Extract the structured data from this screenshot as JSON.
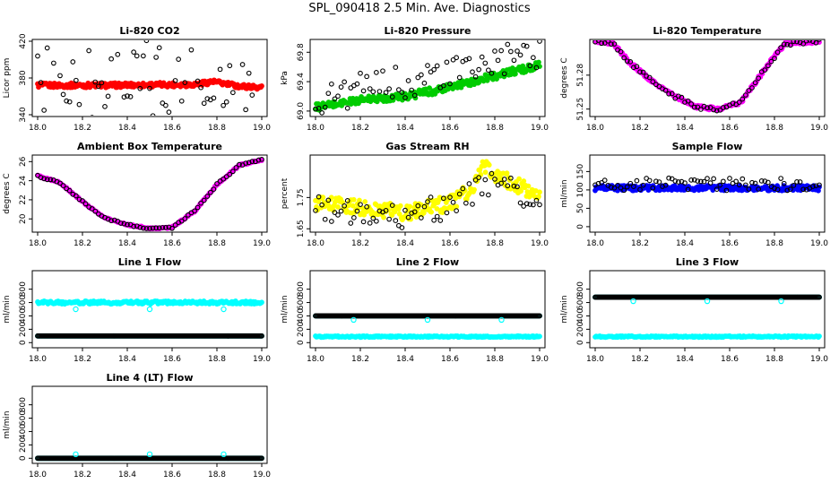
{
  "page_title": "SPL_090418  2.5 Min. Ave. Diagnostics",
  "colors": {
    "black": "#000000",
    "red": "#ff0000",
    "green": "#00cc00",
    "magenta": "#ff00ff",
    "yellow": "#ffff00",
    "blue": "#0000ff",
    "cyan": "#00ffff"
  },
  "chart_data": [
    {
      "type": "scatter",
      "title": "Li-820 CO2",
      "ylabel": "Licor ppm",
      "xlim": [
        18.0,
        19.0
      ],
      "ylim": [
        340,
        420
      ],
      "xticks": [
        "18.0",
        "18.2",
        "18.4",
        "18.6",
        "18.8",
        "19.0"
      ],
      "yticks": [
        "340",
        "380",
        "420"
      ],
      "series": [
        {
          "kind": "band",
          "color": "#ff0000",
          "profile": [
            [
              18.0,
              372
            ],
            [
              18.3,
              372
            ],
            [
              18.7,
              373
            ],
            [
              18.78,
              376
            ],
            [
              18.9,
              371
            ],
            [
              19.0,
              370
            ]
          ],
          "spread": 2.5,
          "filled": true
        },
        {
          "kind": "scatter",
          "color": "#000000",
          "profile": [
            [
              18.0,
              372
            ],
            [
              19.0,
              372
            ]
          ],
          "spread": 50,
          "filled": false
        }
      ]
    },
    {
      "type": "scatter",
      "title": "Li-820 Pressure",
      "ylabel": "kPa",
      "xlim": [
        18.0,
        19.0
      ],
      "ylim": [
        68.95,
        69.95
      ],
      "xticks": [
        "18.0",
        "18.2",
        "18.4",
        "18.6",
        "18.8",
        "19.0"
      ],
      "yticks": [
        "69.0",
        "69.4",
        "69.8"
      ],
      "series": [
        {
          "kind": "band",
          "color": "#00cc00",
          "profile": [
            [
              18.0,
              69.05
            ],
            [
              18.2,
              69.15
            ],
            [
              18.4,
              69.2
            ],
            [
              18.6,
              69.32
            ],
            [
              18.8,
              69.48
            ],
            [
              19.0,
              69.62
            ]
          ],
          "spread": 0.05,
          "filled": true
        },
        {
          "kind": "scatter",
          "color": "#000000",
          "profile": [
            [
              18.0,
              69.15
            ],
            [
              18.2,
              69.3
            ],
            [
              18.4,
              69.4
            ],
            [
              18.6,
              69.5
            ],
            [
              18.8,
              69.65
            ],
            [
              19.0,
              69.8
            ]
          ],
          "spread": 0.22,
          "filled": false
        }
      ]
    },
    {
      "type": "scatter",
      "title": "Li-820 Temperature",
      "ylabel": "degrees C",
      "xlim": [
        18.0,
        19.0
      ],
      "ylim": [
        51.245,
        51.31
      ],
      "xticks": [
        "18.0",
        "18.2",
        "18.4",
        "18.6",
        "18.8",
        "19.0"
      ],
      "yticks": [
        "51.25",
        "51.28"
      ],
      "series": [
        {
          "kind": "band",
          "color": "#ff00ff",
          "profile": [
            [
              18.0,
              51.31
            ],
            [
              18.08,
              51.308
            ],
            [
              18.15,
              51.292
            ],
            [
              18.25,
              51.275
            ],
            [
              18.35,
              51.262
            ],
            [
              18.45,
              51.252
            ],
            [
              18.55,
              51.25
            ],
            [
              18.65,
              51.256
            ],
            [
              18.72,
              51.275
            ],
            [
              18.78,
              51.292
            ],
            [
              18.85,
              51.308
            ],
            [
              19.0,
              51.31
            ]
          ],
          "spread": 0.0015,
          "filled": true
        },
        {
          "kind": "scatter",
          "color": "#000000",
          "profile": [
            [
              18.0,
              51.31
            ],
            [
              18.08,
              51.308
            ],
            [
              18.15,
              51.292
            ],
            [
              18.25,
              51.275
            ],
            [
              18.35,
              51.262
            ],
            [
              18.45,
              51.252
            ],
            [
              18.55,
              51.25
            ],
            [
              18.65,
              51.256
            ],
            [
              18.72,
              51.275
            ],
            [
              18.78,
              51.292
            ],
            [
              18.85,
              51.308
            ],
            [
              19.0,
              51.31
            ]
          ],
          "spread": 0.002,
          "filled": false
        }
      ]
    },
    {
      "type": "scatter",
      "title": "Ambient Box Temperature",
      "ylabel": "degrees C",
      "xlim": [
        18.0,
        19.0
      ],
      "ylim": [
        18.8,
        26.5
      ],
      "xticks": [
        "18.0",
        "18.2",
        "18.4",
        "18.6",
        "18.8",
        "19.0"
      ],
      "yticks": [
        "20",
        "22",
        "24",
        "26"
      ],
      "series": [
        {
          "kind": "band",
          "color": "#ff00ff",
          "profile": [
            [
              18.0,
              24.5
            ],
            [
              18.1,
              23.8
            ],
            [
              18.2,
              21.8
            ],
            [
              18.3,
              20.1
            ],
            [
              18.4,
              19.4
            ],
            [
              18.5,
              19.0
            ],
            [
              18.6,
              19.1
            ],
            [
              18.7,
              20.8
            ],
            [
              18.8,
              23.6
            ],
            [
              18.9,
              25.6
            ],
            [
              19.0,
              26.2
            ]
          ],
          "spread": 0.08,
          "filled": true
        },
        {
          "kind": "scatter",
          "color": "#000000",
          "profile": [
            [
              18.0,
              24.5
            ],
            [
              18.1,
              23.8
            ],
            [
              18.2,
              21.8
            ],
            [
              18.3,
              20.1
            ],
            [
              18.4,
              19.4
            ],
            [
              18.5,
              19.0
            ],
            [
              18.6,
              19.1
            ],
            [
              18.7,
              20.8
            ],
            [
              18.8,
              23.6
            ],
            [
              18.9,
              25.6
            ],
            [
              19.0,
              26.2
            ]
          ],
          "spread": 0.1,
          "filled": false
        }
      ]
    },
    {
      "type": "scatter",
      "title": "Gas Stream RH",
      "ylabel": "percent",
      "xlim": [
        18.0,
        19.0
      ],
      "ylim": [
        1.645,
        1.88
      ],
      "xticks": [
        "18.0",
        "18.2",
        "18.4",
        "18.6",
        "18.8",
        "19.0"
      ],
      "yticks": [
        "1.65",
        "1.75"
      ],
      "series": [
        {
          "kind": "band",
          "color": "#ffff00",
          "profile": [
            [
              18.0,
              1.73
            ],
            [
              18.2,
              1.72
            ],
            [
              18.3,
              1.71
            ],
            [
              18.4,
              1.7
            ],
            [
              18.5,
              1.72
            ],
            [
              18.6,
              1.73
            ],
            [
              18.7,
              1.78
            ],
            [
              18.75,
              1.85
            ],
            [
              18.8,
              1.82
            ],
            [
              18.9,
              1.79
            ],
            [
              19.0,
              1.76
            ]
          ],
          "spread": 0.025,
          "filled": true
        },
        {
          "kind": "scatter",
          "color": "#000000",
          "profile": [
            [
              18.0,
              1.72
            ],
            [
              18.2,
              1.7
            ],
            [
              18.3,
              1.7
            ],
            [
              18.4,
              1.68
            ],
            [
              18.5,
              1.71
            ],
            [
              18.6,
              1.72
            ],
            [
              18.7,
              1.76
            ],
            [
              18.75,
              1.8
            ],
            [
              18.8,
              1.79
            ],
            [
              18.9,
              1.77
            ],
            [
              19.0,
              1.73
            ]
          ],
          "spread": 0.04,
          "filled": false
        }
      ]
    },
    {
      "type": "scatter",
      "title": "Sample Flow",
      "ylabel": "ml/min",
      "xlim": [
        18.0,
        19.0
      ],
      "ylim": [
        -10,
        190
      ],
      "xticks": [
        "18.0",
        "18.2",
        "18.4",
        "18.6",
        "18.8",
        "19.0"
      ],
      "yticks": [
        "0",
        "50",
        "100",
        "150"
      ],
      "series": [
        {
          "kind": "band",
          "color": "#0000ff",
          "profile": [
            [
              18.0,
              105
            ],
            [
              19.0,
              105
            ]
          ],
          "spread": 7,
          "filled": true
        },
        {
          "kind": "scatter",
          "color": "#000000",
          "profile": [
            [
              18.0,
              115
            ],
            [
              19.0,
              115
            ]
          ],
          "spread": 18,
          "filled": false
        }
      ]
    },
    {
      "type": "scatter",
      "title": "Line 1 Flow",
      "ylabel": "ml/min",
      "xlim": [
        18.0,
        19.0
      ],
      "ylim": [
        -50,
        1050
      ],
      "xticks": [
        "18.0",
        "18.2",
        "18.4",
        "18.6",
        "18.8",
        "19.0"
      ],
      "yticks": [
        "0",
        "200",
        "400",
        "600",
        "800"
      ],
      "series": [
        {
          "kind": "band",
          "color": "#00ffff",
          "profile": [
            [
              18.0,
              600
            ],
            [
              19.0,
              600
            ]
          ],
          "spread": 22,
          "filled": true
        },
        {
          "kind": "line",
          "color": "#00ffff",
          "profile": [
            [
              18.0,
              100
            ],
            [
              19.0,
              100
            ]
          ],
          "spread": 0
        },
        {
          "kind": "line",
          "color": "#000000",
          "profile": [
            [
              18.0,
              100
            ],
            [
              19.0,
              100
            ]
          ],
          "spread": 0
        },
        {
          "kind": "points",
          "color": "#00ffff",
          "x": [
            18.17,
            18.5,
            18.83
          ],
          "y": [
            500,
            500,
            500
          ]
        }
      ]
    },
    {
      "type": "scatter",
      "title": "Line 2 Flow",
      "ylabel": "ml/min",
      "xlim": [
        18.0,
        19.0
      ],
      "ylim": [
        -50,
        1050
      ],
      "xticks": [
        "18.0",
        "18.2",
        "18.4",
        "18.6",
        "18.8",
        "19.0"
      ],
      "yticks": [
        "0",
        "200",
        "400",
        "600",
        "800"
      ],
      "series": [
        {
          "kind": "band",
          "color": "#00ffff",
          "profile": [
            [
              18.0,
              90
            ],
            [
              19.0,
              90
            ]
          ],
          "spread": 10,
          "filled": true
        },
        {
          "kind": "line",
          "color": "#00ffff",
          "profile": [
            [
              18.0,
              400
            ],
            [
              19.0,
              400
            ]
          ],
          "spread": 0
        },
        {
          "kind": "line",
          "color": "#000000",
          "profile": [
            [
              18.0,
              400
            ],
            [
              19.0,
              400
            ]
          ],
          "spread": 0
        },
        {
          "kind": "points",
          "color": "#00ffff",
          "x": [
            18.17,
            18.5,
            18.83
          ],
          "y": [
            340,
            340,
            340
          ]
        }
      ]
    },
    {
      "type": "scatter",
      "title": "Line 3 Flow",
      "ylabel": "ml/min",
      "xlim": [
        18.0,
        19.0
      ],
      "ylim": [
        -50,
        1050
      ],
      "xticks": [
        "18.0",
        "18.2",
        "18.4",
        "18.6",
        "18.8",
        "19.0"
      ],
      "yticks": [
        "0",
        "200",
        "400",
        "600",
        "800"
      ],
      "series": [
        {
          "kind": "band",
          "color": "#00ffff",
          "profile": [
            [
              18.0,
              90
            ],
            [
              19.0,
              90
            ]
          ],
          "spread": 10,
          "filled": true
        },
        {
          "kind": "line",
          "color": "#00ffff",
          "profile": [
            [
              18.0,
              680
            ],
            [
              19.0,
              680
            ]
          ],
          "spread": 0
        },
        {
          "kind": "line",
          "color": "#000000",
          "profile": [
            [
              18.0,
              680
            ],
            [
              19.0,
              680
            ]
          ],
          "spread": 0
        },
        {
          "kind": "points",
          "color": "#00ffff",
          "x": [
            18.17,
            18.5,
            18.83
          ],
          "y": [
            620,
            620,
            620
          ]
        }
      ]
    },
    {
      "type": "scatter",
      "title": "Line 4 (LT) Flow",
      "ylabel": "ml/min",
      "xlim": [
        18.0,
        19.0
      ],
      "ylim": [
        -50,
        1050
      ],
      "xticks": [
        "18.0",
        "18.2",
        "18.4",
        "18.6",
        "18.8",
        "19.0"
      ],
      "yticks": [
        "0",
        "200",
        "400",
        "600",
        "800"
      ],
      "series": [
        {
          "kind": "line",
          "color": "#00ffff",
          "profile": [
            [
              18.0,
              0
            ],
            [
              19.0,
              0
            ]
          ],
          "spread": 0
        },
        {
          "kind": "line",
          "color": "#000000",
          "profile": [
            [
              18.0,
              0
            ],
            [
              19.0,
              0
            ]
          ],
          "spread": 0
        },
        {
          "kind": "points",
          "color": "#00ffff",
          "x": [
            18.17,
            18.5,
            18.83
          ],
          "y": [
            60,
            60,
            60
          ]
        }
      ]
    }
  ]
}
